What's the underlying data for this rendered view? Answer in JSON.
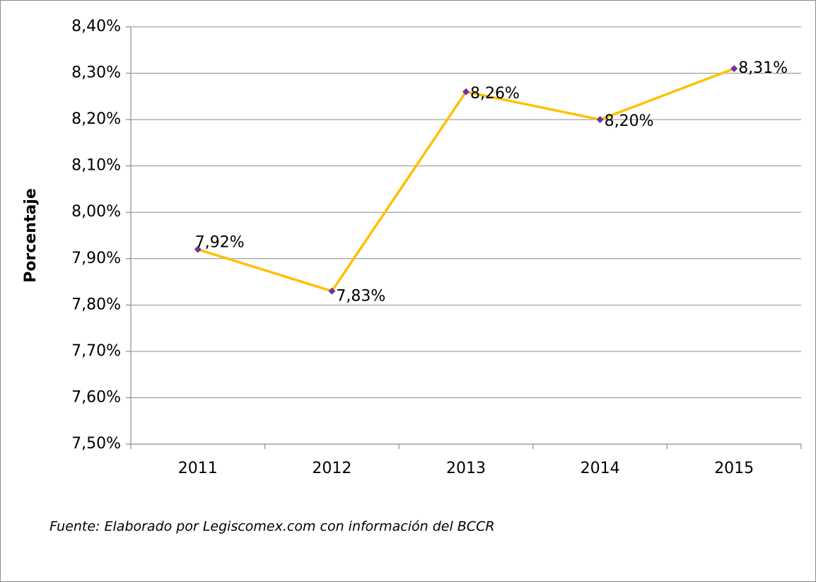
{
  "chart_data": {
    "type": "line",
    "y_label": "Porcentaje",
    "source": "Fuente: Elaborado por Legiscomex.com con información del BCCR",
    "categories": [
      "2011",
      "2012",
      "2013",
      "2014",
      "2015"
    ],
    "series": [
      {
        "name": "Porcentaje",
        "color": "#ffc000",
        "marker_color": "#7030a0",
        "values": [
          7.92,
          7.83,
          8.26,
          8.2,
          8.31
        ],
        "value_labels": [
          "7,92%",
          "7,83%",
          "8,26%",
          "8,20%",
          "8,31%"
        ]
      }
    ],
    "ylim": [
      7.5,
      8.4
    ],
    "yticks": [
      {
        "value": 7.5,
        "label": "7,50%"
      },
      {
        "value": 7.6,
        "label": "7,60%"
      },
      {
        "value": 7.7,
        "label": "7,70%"
      },
      {
        "value": 7.8,
        "label": "7,80%"
      },
      {
        "value": 7.9,
        "label": "7,90%"
      },
      {
        "value": 8.0,
        "label": "8,00%"
      },
      {
        "value": 8.1,
        "label": "8,10%"
      },
      {
        "value": 8.2,
        "label": "8,20%"
      },
      {
        "value": 8.3,
        "label": "8,30%"
      },
      {
        "value": 8.4,
        "label": "8,40%"
      }
    ],
    "grid": true
  }
}
